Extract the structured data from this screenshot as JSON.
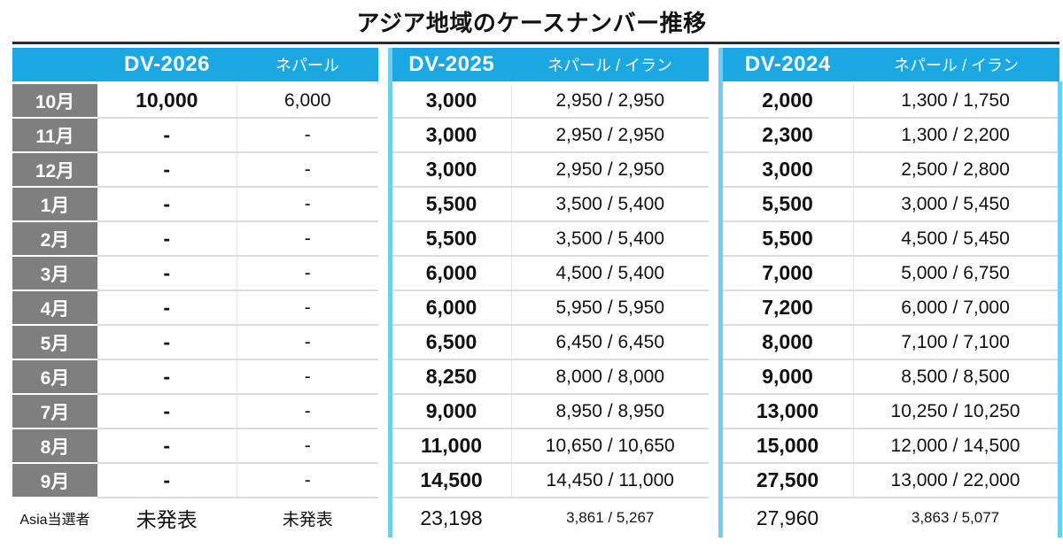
{
  "page": {
    "title": "アジア地域のケースナンバー推移"
  },
  "colors": {
    "header_background": "#1BA7E1",
    "group_separator_line": "#6FCDF2",
    "month_column_background": "#7F7F7F",
    "gridline": "#DCDCDC",
    "top_rule": "#2B2B2B",
    "header_text": "#FFFFFF",
    "body_text": "#111111"
  },
  "chart_data": {
    "type": "table",
    "title": "アジア地域のケースナンバー推移",
    "columns": [
      "",
      "DV-2026",
      "ネパール",
      "DV-2025",
      "ネパール / イラン",
      "DV-2024",
      "ネパール / イラン"
    ],
    "rows": [
      {
        "month": "10月",
        "dv2026": "10,000",
        "nepal2026": "6,000",
        "dv2025": "3,000",
        "ni2025": "2,950 / 2,950",
        "dv2024": "2,000",
        "ni2024": "1,300 / 1,750"
      },
      {
        "month": "11月",
        "dv2026": "-",
        "nepal2026": "-",
        "dv2025": "3,000",
        "ni2025": "2,950 / 2,950",
        "dv2024": "2,300",
        "ni2024": "1,300 / 2,200"
      },
      {
        "month": "12月",
        "dv2026": "-",
        "nepal2026": "-",
        "dv2025": "3,000",
        "ni2025": "2,950 / 2,950",
        "dv2024": "3,000",
        "ni2024": "2,500 / 2,800"
      },
      {
        "month": "1月",
        "dv2026": "-",
        "nepal2026": "-",
        "dv2025": "5,500",
        "ni2025": "3,500 / 5,400",
        "dv2024": "5,500",
        "ni2024": "3,000 / 5,450"
      },
      {
        "month": "2月",
        "dv2026": "-",
        "nepal2026": "-",
        "dv2025": "5,500",
        "ni2025": "3,500 / 5,400",
        "dv2024": "5,500",
        "ni2024": "4,500 / 5,450"
      },
      {
        "month": "3月",
        "dv2026": "-",
        "nepal2026": "-",
        "dv2025": "6,000",
        "ni2025": "4,500 / 5,400",
        "dv2024": "7,000",
        "ni2024": "5,000 / 6,750"
      },
      {
        "month": "4月",
        "dv2026": "-",
        "nepal2026": "-",
        "dv2025": "6,000",
        "ni2025": "5,950 / 5,950",
        "dv2024": "7,200",
        "ni2024": "6,000 / 7,000"
      },
      {
        "month": "5月",
        "dv2026": "-",
        "nepal2026": "-",
        "dv2025": "6,500",
        "ni2025": "6,450 / 6,450",
        "dv2024": "8,000",
        "ni2024": "7,100 / 7,100"
      },
      {
        "month": "6月",
        "dv2026": "-",
        "nepal2026": "-",
        "dv2025": "8,250",
        "ni2025": "8,000 / 8,000",
        "dv2024": "9,000",
        "ni2024": "8,500 / 8,500"
      },
      {
        "month": "7月",
        "dv2026": "-",
        "nepal2026": "-",
        "dv2025": "9,000",
        "ni2025": "8,950 / 8,950",
        "dv2024": "13,000",
        "ni2024": "10,250 / 10,250"
      },
      {
        "month": "8月",
        "dv2026": "-",
        "nepal2026": "-",
        "dv2025": "11,000",
        "ni2025": "10,650 / 10,650",
        "dv2024": "15,000",
        "ni2024": "12,000 / 14,500"
      },
      {
        "month": "9月",
        "dv2026": "-",
        "nepal2026": "-",
        "dv2025": "14,500",
        "ni2025": "14,450 / 11,000",
        "dv2024": "27,500",
        "ni2024": "13,000 / 22,000"
      }
    ],
    "summary_row": {
      "label": "Asia当選者",
      "dv2026": "未発表",
      "nepal2026": "未発表",
      "dv2025": "23,198",
      "ni2025": "3,861 / 5,267",
      "dv2024": "27,960",
      "ni2024": "3,863 / 5,077"
    }
  }
}
